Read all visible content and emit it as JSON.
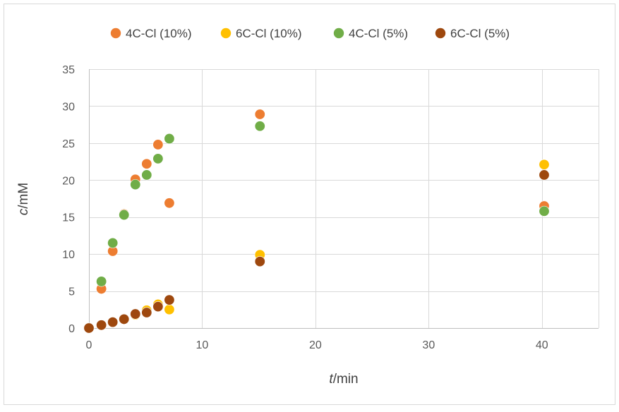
{
  "chart_data": {
    "type": "scatter",
    "title": "",
    "xlabel": {
      "var": "t",
      "unit": "/min"
    },
    "ylabel": {
      "var": "c",
      "unit": "/mM"
    },
    "xlim": [
      0,
      45
    ],
    "ylim": [
      0,
      35
    ],
    "x_ticks": [
      0,
      10,
      20,
      30,
      40
    ],
    "y_ticks": [
      0,
      5,
      10,
      15,
      20,
      25,
      30,
      35
    ],
    "grid": true,
    "legend_position": "top",
    "series": [
      {
        "name": "4C-Cl (10%)",
        "color": "#ED7D31",
        "points": [
          [
            0,
            0
          ],
          [
            1.1,
            5.3
          ],
          [
            2.1,
            10.4
          ],
          [
            3.1,
            15.4
          ],
          [
            4.1,
            20.1
          ],
          [
            5.1,
            22.2
          ],
          [
            6.1,
            24.8
          ],
          [
            7.1,
            16.9
          ],
          [
            15.1,
            28.9
          ],
          [
            40.2,
            16.5
          ]
        ]
      },
      {
        "name": "6C-Cl (10%)",
        "color": "#FFC000",
        "points": [
          [
            0,
            0
          ],
          [
            1.1,
            0.4
          ],
          [
            2.1,
            0.8
          ],
          [
            3.1,
            1.2
          ],
          [
            4.1,
            1.8
          ],
          [
            5.1,
            2.4
          ],
          [
            6.1,
            3.2
          ],
          [
            7.1,
            2.5
          ],
          [
            15.1,
            9.9
          ],
          [
            40.2,
            22.1
          ]
        ]
      },
      {
        "name": "4C-Cl (5%)",
        "color": "#70AD47",
        "points": [
          [
            0,
            0
          ],
          [
            1.1,
            6.3
          ],
          [
            2.1,
            11.5
          ],
          [
            3.1,
            15.3
          ],
          [
            4.1,
            19.4
          ],
          [
            5.1,
            20.7
          ],
          [
            6.1,
            22.9
          ],
          [
            7.1,
            25.6
          ],
          [
            15.1,
            27.3
          ],
          [
            40.2,
            15.8
          ]
        ]
      },
      {
        "name": "6C-Cl (5%)",
        "color": "#9E480E",
        "points": [
          [
            0,
            0
          ],
          [
            1.1,
            0.4
          ],
          [
            2.1,
            0.8
          ],
          [
            3.1,
            1.2
          ],
          [
            4.1,
            1.9
          ],
          [
            5.1,
            2.1
          ],
          [
            6.1,
            2.9
          ],
          [
            7.1,
            3.8
          ],
          [
            15.1,
            9.0
          ],
          [
            40.2,
            20.7
          ]
        ]
      }
    ]
  }
}
